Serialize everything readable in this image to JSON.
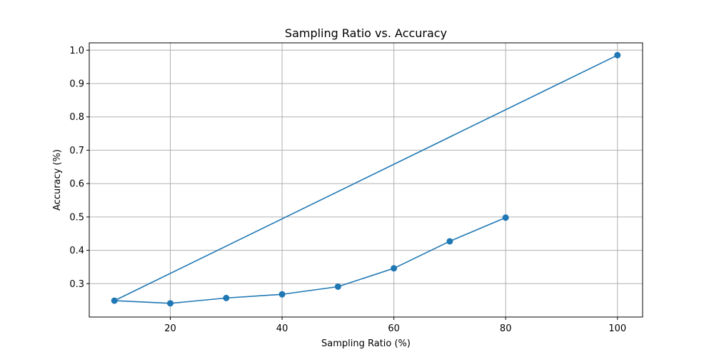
{
  "chart_data": {
    "type": "line",
    "title": "Sampling Ratio vs. Accuracy",
    "xlabel": "Sampling Ratio (%)",
    "ylabel": "Accuracy (%)",
    "xlim": [
      5.5,
      104.5
    ],
    "ylim": [
      0.2,
      1.022
    ],
    "xticks": [
      20,
      40,
      60,
      80,
      100
    ],
    "yticks": [
      0.3,
      0.4,
      0.5,
      0.6,
      0.7,
      0.8,
      0.9,
      1.0
    ],
    "xtick_labels": [
      "20",
      "40",
      "60",
      "80",
      "100"
    ],
    "ytick_labels": [
      "0.3",
      "0.4",
      "0.5",
      "0.6",
      "0.7",
      "0.8",
      "0.9",
      "1.0"
    ],
    "grid": true,
    "series": [
      {
        "color": "#1f77b4",
        "marker": "circle",
        "x": [
          100,
          10,
          20,
          30,
          40,
          50,
          60,
          70,
          80
        ],
        "y": [
          0.985,
          0.249,
          0.241,
          0.257,
          0.268,
          0.291,
          0.346,
          0.427,
          0.498
        ]
      }
    ]
  }
}
